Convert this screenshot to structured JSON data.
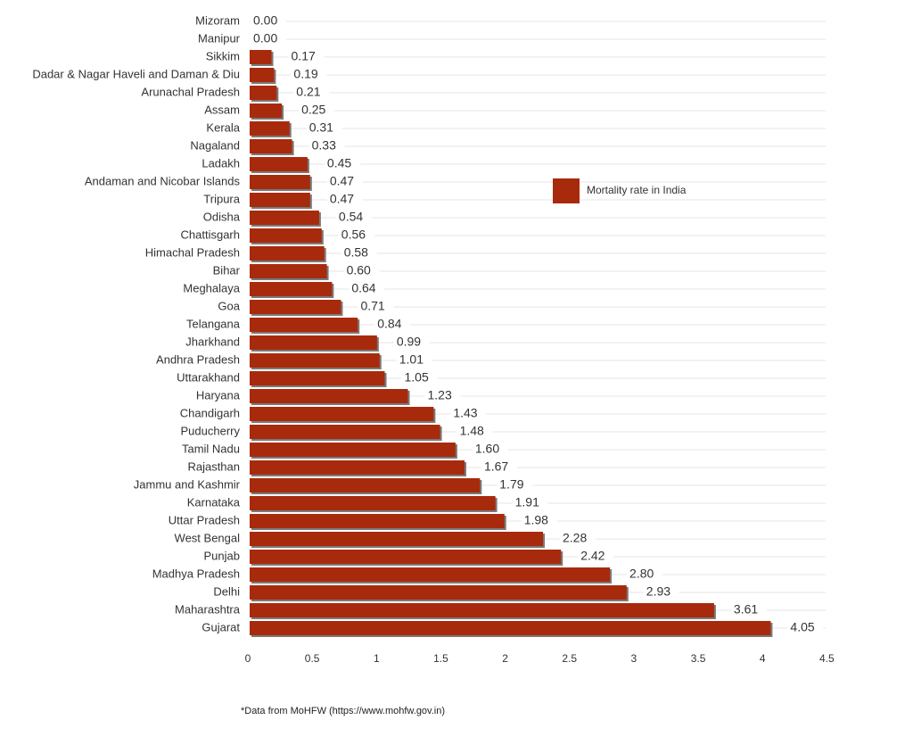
{
  "chart_data": {
    "type": "bar",
    "orientation": "horizontal",
    "title": "",
    "xlabel": "",
    "ylabel": "",
    "xlim": [
      0,
      4.5
    ],
    "xticks": [
      "0",
      "0.5",
      "1",
      "1.5",
      "2",
      "2.5",
      "3",
      "3.5",
      "4",
      "4.5"
    ],
    "grid": "horizontal lines per category",
    "legend_position": "right-center",
    "bar_color": "#a82a0c",
    "shadow_color": "#7a7a7a",
    "categories": [
      "Mizoram",
      "Manipur",
      "Sikkim",
      "Dadar & Nagar Haveli and Daman & Diu",
      "Arunachal Pradesh",
      "Assam",
      "Kerala",
      "Nagaland",
      "Ladakh",
      "Andaman and Nicobar Islands",
      "Tripura",
      "Odisha",
      "Chattisgarh",
      "Himachal Pradesh",
      "Bihar",
      "Meghalaya",
      "Goa",
      "Telangana",
      "Jharkhand",
      "Andhra Pradesh",
      "Uttarakhand",
      "Haryana",
      "Chandigarh",
      "Puducherry",
      "Tamil Nadu",
      "Rajasthan",
      "Jammu and Kashmir",
      "Karnataka",
      "Uttar Pradesh",
      "West Bengal",
      "Punjab",
      "Madhya Pradesh",
      "Delhi",
      "Maharashtra",
      "Gujarat"
    ],
    "series": [
      {
        "name": "Mortality rate in India",
        "values": [
          0.0,
          0.0,
          0.17,
          0.19,
          0.21,
          0.25,
          0.31,
          0.33,
          0.45,
          0.47,
          0.47,
          0.54,
          0.56,
          0.58,
          0.6,
          0.64,
          0.71,
          0.84,
          0.99,
          1.01,
          1.05,
          1.23,
          1.43,
          1.48,
          1.6,
          1.67,
          1.79,
          1.91,
          1.98,
          2.28,
          2.42,
          2.8,
          2.93,
          3.61,
          4.05
        ],
        "labels": [
          "0.00",
          "0.00",
          "0.17",
          "0.19",
          "0.21",
          "0.25",
          "0.31",
          "0.33",
          "0.45",
          "0.47",
          "0.47",
          "0.54",
          "0.56",
          "0.58",
          "0.60",
          "0.64",
          "0.71",
          "0.84",
          "0.99",
          "1.01",
          "1.05",
          "1.23",
          "1.43",
          "1.48",
          "1.60",
          "1.67",
          "1.79",
          "1.91",
          "1.98",
          "2.28",
          "2.42",
          "2.80",
          "2.93",
          "3.61",
          "4.05"
        ]
      }
    ]
  },
  "footnote": "*Data from MoHFW (https://www.mohfw.gov.in)"
}
